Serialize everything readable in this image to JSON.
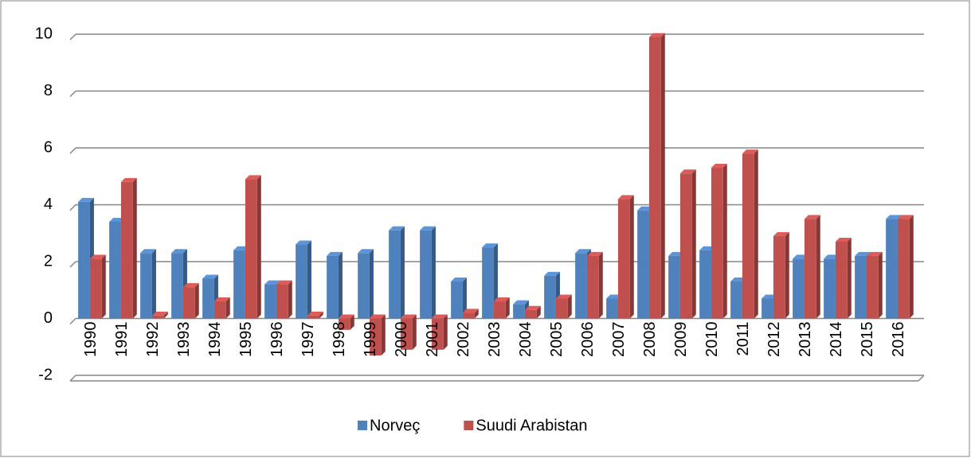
{
  "chart_data": {
    "type": "bar",
    "categories": [
      "1990",
      "1991",
      "1992",
      "1993",
      "1994",
      "1995",
      "1996",
      "1997",
      "1998",
      "1999",
      "2000",
      "2001",
      "2002",
      "2003",
      "2004",
      "2005",
      "2006",
      "2007",
      "2008",
      "2009",
      "2010",
      "2011",
      "2012",
      "2013",
      "2014",
      "2015",
      "2016"
    ],
    "series": [
      {
        "name": "Norveç",
        "color": "#4f81bd",
        "values": [
          4.1,
          3.4,
          2.3,
          2.3,
          1.4,
          2.4,
          1.2,
          2.6,
          2.2,
          2.3,
          3.1,
          3.1,
          1.3,
          2.5,
          0.5,
          1.5,
          2.3,
          0.7,
          3.8,
          2.2,
          2.4,
          1.3,
          0.7,
          2.1,
          2.1,
          2.2,
          3.5
        ]
      },
      {
        "name": "Suudi Arabistan",
        "color": "#c0504d",
        "values": [
          2.1,
          4.8,
          0.1,
          1.1,
          0.6,
          4.9,
          1.2,
          0.1,
          -0.4,
          -1.3,
          -1.1,
          -1.1,
          0.2,
          0.6,
          0.3,
          0.7,
          2.2,
          4.2,
          9.9,
          5.1,
          5.3,
          5.8,
          2.9,
          3.5,
          2.7,
          2.2,
          3.5
        ]
      }
    ],
    "ylim": [
      -2,
      10
    ],
    "yticks": [
      -2,
      0,
      2,
      4,
      6,
      8,
      10
    ],
    "grid": true,
    "legend": "bottom"
  }
}
